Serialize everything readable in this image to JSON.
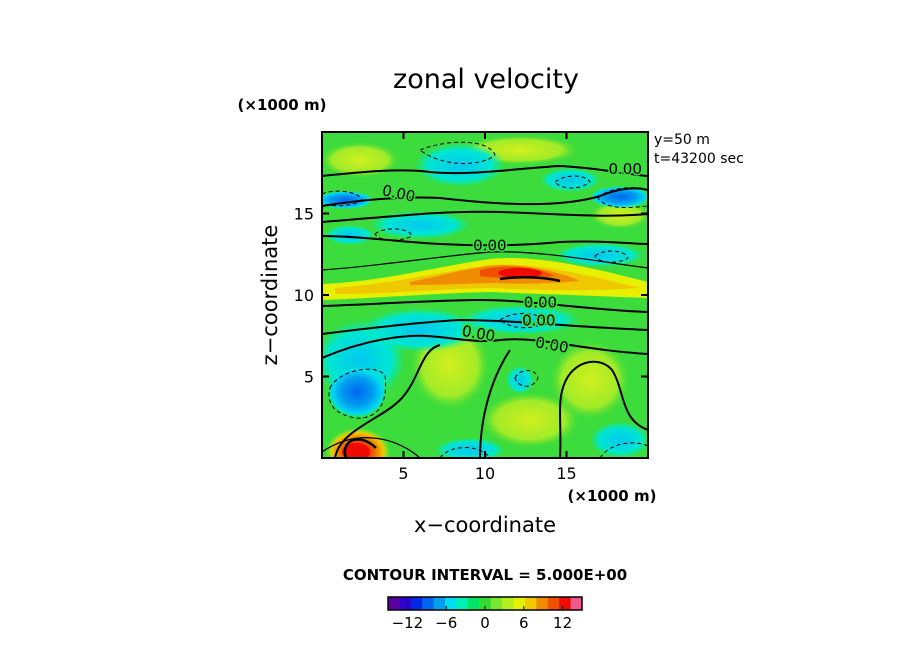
{
  "chart_data": {
    "type": "heatmap",
    "title": "zonal velocity",
    "xlabel": "x−coordinate",
    "ylabel": "z−coordinate",
    "x_scale_label": "(×1000 m)",
    "y_scale_label": "(×1000 m)",
    "info_lines": [
      "y=50  m",
      "t=43200 sec"
    ],
    "xlim": [
      0,
      20
    ],
    "ylim": [
      0,
      20
    ],
    "x_ticks": [
      5,
      10,
      15
    ],
    "y_ticks": [
      5,
      10,
      15
    ],
    "x_tick_labels": [
      "5",
      "10",
      "15"
    ],
    "y_tick_labels": [
      "5",
      "10",
      "15"
    ],
    "contour_interval_text": "CONTOUR INTERVAL = 5.000E+00",
    "contour_labels": [
      {
        "text": "0.00",
        "x": 18.6,
        "z": 17.7,
        "angle": 0
      },
      {
        "text": "0.00",
        "x": 4.7,
        "z": 16.2,
        "angle": 12
      },
      {
        "text": "0.00",
        "x": 10.3,
        "z": 13.0,
        "angle": 0
      },
      {
        "text": "0.00",
        "x": 13.4,
        "z": 9.5,
        "angle": 0
      },
      {
        "text": "0.00",
        "x": 13.3,
        "z": 8.4,
        "angle": 0
      },
      {
        "text": "0.00",
        "x": 9.6,
        "z": 7.6,
        "angle": 10
      },
      {
        "text": "0.00",
        "x": 14.1,
        "z": 6.9,
        "angle": 10
      }
    ],
    "colorbar": {
      "range": [
        -15,
        15
      ],
      "tick_values": [
        -12,
        -6,
        0,
        6,
        12
      ],
      "tick_labels": [
        "−12",
        "−6",
        "0",
        "6",
        "12"
      ],
      "colors": [
        "#5a00a0",
        "#2c00c8",
        "#0028e6",
        "#0064f0",
        "#00a0f0",
        "#00dcf0",
        "#00f0b4",
        "#00e664",
        "#32dc32",
        "#78e632",
        "#b4f01e",
        "#e6f000",
        "#f0c800",
        "#f08c00",
        "#f05000",
        "#f00a00",
        "#f05a8c"
      ]
    },
    "features": [
      {
        "name": "main-jet",
        "x": [
          0,
          20
        ],
        "z": [
          10.2,
          11.2
        ],
        "value": 10
      },
      {
        "name": "jet-core",
        "x": [
          11.5,
          14
        ],
        "z": [
          10.7,
          11.4
        ],
        "value": 13
      },
      {
        "name": "surface-jet",
        "x": [
          1.5,
          3
        ],
        "z": [
          0,
          1
        ],
        "value": 14
      },
      {
        "name": "lower-left-minimum",
        "x": [
          1,
          3.5
        ],
        "z": [
          2.3,
          5
        ],
        "value": -7
      },
      {
        "name": "upper-right-minimum",
        "x": [
          17,
          20
        ],
        "z": [
          15,
          16.5
        ],
        "value": -7
      },
      {
        "name": "upper-left-minimum",
        "x": [
          0,
          3
        ],
        "z": [
          15.3,
          16.5
        ],
        "value": -6
      }
    ]
  }
}
